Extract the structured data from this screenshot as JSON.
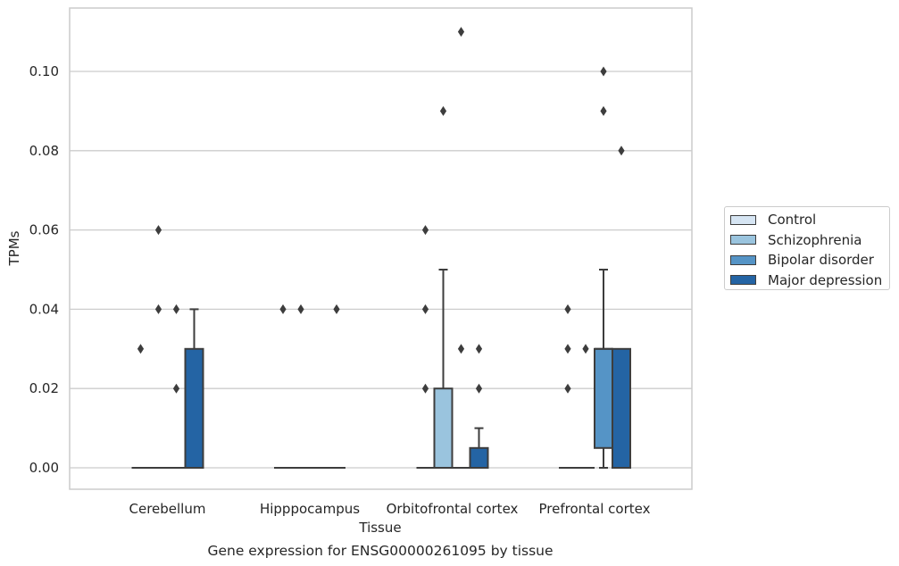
{
  "chart_data": {
    "type": "box",
    "title": "",
    "caption": "Gene expression for ENSG00000261095 by tissue",
    "xlabel": "Tissue",
    "ylabel": "TPMs",
    "ylim": [
      -0.0055,
      0.116
    ],
    "yticks": [
      "0.00",
      "0.02",
      "0.04",
      "0.06",
      "0.08",
      "0.10"
    ],
    "ytick_values": [
      0,
      0.02,
      0.04,
      0.06,
      0.08,
      0.1
    ],
    "grid": "horizontal",
    "legend_position": "right",
    "categories": [
      "Cerebellum",
      "Hipppocampus",
      "Orbitofrontal cortex",
      "Prefrontal cortex"
    ],
    "series": [
      {
        "name": "Control",
        "color": "#d6e5f3",
        "boxes": [
          {
            "q1": 0,
            "median": 0,
            "q3": 0,
            "whisker_low": 0,
            "whisker_high": 0,
            "outliers": [
              0.03
            ]
          },
          {
            "q1": 0,
            "median": 0,
            "q3": 0,
            "whisker_low": 0,
            "whisker_high": 0,
            "outliers": [
              0.04
            ]
          },
          {
            "q1": 0,
            "median": 0,
            "q3": 0,
            "whisker_low": 0,
            "whisker_high": 0,
            "outliers": [
              0.02,
              0.04,
              0.06
            ]
          },
          {
            "q1": 0,
            "median": 0,
            "q3": 0,
            "whisker_low": 0,
            "whisker_high": 0,
            "outliers": [
              0.02,
              0.03,
              0.04
            ]
          }
        ]
      },
      {
        "name": "Schizophrenia",
        "color": "#9ac4de",
        "boxes": [
          {
            "q1": 0,
            "median": 0,
            "q3": 0,
            "whisker_low": 0,
            "whisker_high": 0,
            "outliers": [
              0.04,
              0.06
            ]
          },
          {
            "q1": 0,
            "median": 0,
            "q3": 0,
            "whisker_low": 0,
            "whisker_high": 0,
            "outliers": [
              0.04
            ]
          },
          {
            "q1": 0,
            "median": 0,
            "q3": 0.02,
            "whisker_low": 0,
            "whisker_high": 0.05,
            "outliers": [
              0.09
            ]
          },
          {
            "q1": 0,
            "median": 0,
            "q3": 0,
            "whisker_low": 0,
            "whisker_high": 0,
            "outliers": [
              0.03
            ]
          }
        ]
      },
      {
        "name": "Bipolar disorder",
        "color": "#5594c6",
        "boxes": [
          {
            "q1": 0,
            "median": 0,
            "q3": 0,
            "whisker_low": 0,
            "whisker_high": 0,
            "outliers": [
              0.02,
              0.04
            ]
          },
          {
            "q1": 0,
            "median": 0,
            "q3": 0,
            "whisker_low": 0,
            "whisker_high": 0,
            "outliers": []
          },
          {
            "q1": 0,
            "median": 0,
            "q3": 0,
            "whisker_low": 0,
            "whisker_high": 0,
            "outliers": [
              0.03,
              0.11
            ]
          },
          {
            "q1": 0.005,
            "median": 0.03,
            "q3": 0.03,
            "whisker_low": 0,
            "whisker_high": 0.05,
            "outliers": [
              0.09,
              0.1
            ]
          }
        ]
      },
      {
        "name": "Major depression",
        "color": "#2464a4",
        "boxes": [
          {
            "q1": 0,
            "median": 0,
            "q3": 0.03,
            "whisker_low": 0,
            "whisker_high": 0.04,
            "outliers": []
          },
          {
            "q1": 0,
            "median": 0,
            "q3": 0,
            "whisker_low": 0,
            "whisker_high": 0,
            "outliers": [
              0.04
            ]
          },
          {
            "q1": 0,
            "median": 0,
            "q3": 0.005,
            "whisker_low": 0,
            "whisker_high": 0.01,
            "outliers": [
              0.02,
              0.03
            ]
          },
          {
            "q1": 0,
            "median": 0,
            "q3": 0.03,
            "whisker_low": 0,
            "whisker_high": 0.03,
            "outliers": [
              0.08
            ]
          }
        ]
      }
    ]
  }
}
